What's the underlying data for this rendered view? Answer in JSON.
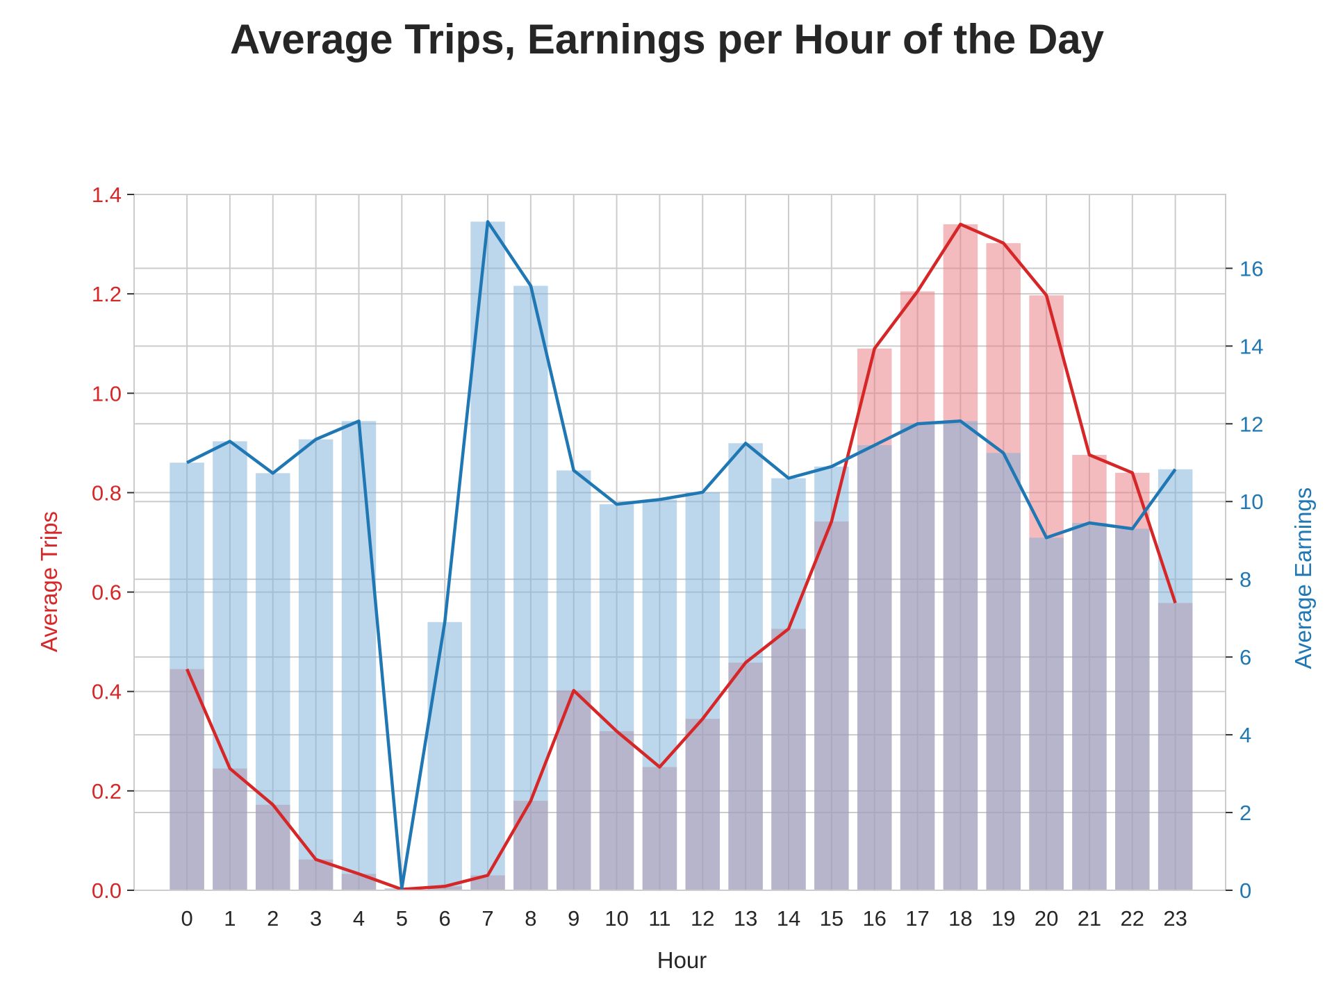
{
  "chart_data": {
    "type": "bar",
    "title": "Average Trips, Earnings per Hour of the Day",
    "xlabel": "Hour",
    "ylabel_left": "Average Trips",
    "ylabel_right": "Average Earnings",
    "categories": [
      "0",
      "1",
      "2",
      "3",
      "4",
      "5",
      "6",
      "7",
      "8",
      "9",
      "10",
      "11",
      "12",
      "13",
      "14",
      "15",
      "16",
      "17",
      "18",
      "19",
      "20",
      "21",
      "22",
      "23"
    ],
    "ylim_left": [
      0,
      1.4
    ],
    "ylim_right": [
      0,
      17.9
    ],
    "yticks_left": [
      "0.0",
      "0.2",
      "0.4",
      "0.6",
      "0.8",
      "1.0",
      "1.2",
      "1.4"
    ],
    "yticks_right": [
      "0",
      "2",
      "4",
      "6",
      "8",
      "10",
      "12",
      "14",
      "16"
    ],
    "grid": true,
    "colors": {
      "trips": "#d62728",
      "earnings": "#1f77b4",
      "trips_bar": "#e8787e",
      "earnings_bar": "#7fb1d9",
      "grid": "#cccccc"
    },
    "series": [
      {
        "name": "Average Trips",
        "axis": "left",
        "values": [
          0.445,
          0.245,
          0.172,
          0.062,
          0.033,
          0.002,
          0.008,
          0.03,
          0.18,
          0.402,
          0.32,
          0.248,
          0.345,
          0.458,
          0.526,
          0.742,
          1.09,
          1.205,
          1.34,
          1.302,
          1.197,
          0.876,
          0.84,
          0.578
        ]
      },
      {
        "name": "Average Earnings",
        "axis": "right",
        "values": [
          11.0,
          11.55,
          10.73,
          11.6,
          12.07,
          0.05,
          6.9,
          17.2,
          15.55,
          10.8,
          9.93,
          10.05,
          10.24,
          11.5,
          10.6,
          10.9,
          11.45,
          12.0,
          12.07,
          11.25,
          9.07,
          9.45,
          9.3,
          10.83
        ]
      }
    ]
  }
}
